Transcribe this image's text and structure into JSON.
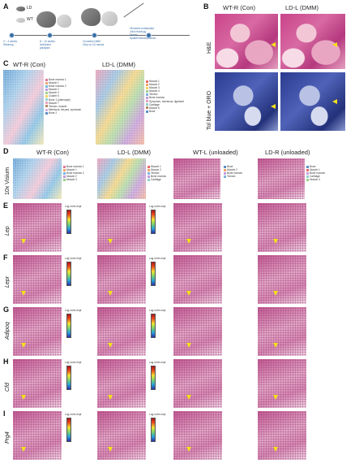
{
  "panels": {
    "A": {
      "letter": "A",
      "legend_ld": "LD",
      "legend_wt": "WT",
      "step1": "0 ~ 4 weeks\nWeaning",
      "step2": "8 ~ 10 weeks\nIsoflurane\nparalysis",
      "step3": "16 weeks DMM\nOnly on LD mouse",
      "step4": "28 weeks euthanasia\nJoint histology\nSerum\nSpatial transcriptomics"
    },
    "B": {
      "letter": "B",
      "col1": "WT-R (Con)",
      "col2": "LD-L (DMM)",
      "row1": "H&E",
      "row2": "Tol blue + ORO"
    },
    "C": {
      "letter": "C",
      "col1": "WT-R (Con)",
      "col2": "LD-L (DMM)",
      "legend1": [
        "Bone marrow 1",
        "Muscle 1",
        "Bone marrow 2",
        "Muscle 2",
        "Muscle 3",
        "Cluster 6",
        "Bone 1 (osteocyte)",
        "Muscle 7",
        "Tendon, muscle",
        "Meniscus, fat pad, synovium",
        "Bone 2"
      ],
      "legend1_colors": [
        "#e07a9a",
        "#f2a36b",
        "#7bb3de",
        "#c49ae0",
        "#9dd08a",
        "#f4d35e",
        "#8fd1d1",
        "#e6a0c4",
        "#b58a66",
        "#d3b4e8",
        "#5b8fc7"
      ],
      "legend2": [
        "Muscle 1",
        "Muscle 2",
        "Muscle 3",
        "Muscle 4",
        "Tendon",
        "Bone marrow",
        "Synovium, meniscus, ligament",
        "Cartilage",
        "Muscle 5",
        "Bone"
      ],
      "legend2_colors": [
        "#e86b6b",
        "#f2a36b",
        "#f4d35e",
        "#9dd08a",
        "#7bb3de",
        "#c49ae0",
        "#e6a0c4",
        "#8fd1d1",
        "#b58a66",
        "#5b8fc7"
      ]
    },
    "D": {
      "letter": "D",
      "row": "10x Visium",
      "cols": [
        "WT-R (Con)",
        "LD-L (DMM)",
        "WT-L (unloaded)",
        "LD-R (unloaded)"
      ]
    },
    "genes": [
      {
        "letter": "E",
        "gene": "Lep"
      },
      {
        "letter": "F",
        "gene": "Lepr"
      },
      {
        "letter": "G",
        "gene": "Adipoq"
      },
      {
        "letter": "H",
        "gene": "Cfd"
      },
      {
        "letter": "I",
        "gene": "Prg4"
      }
    ],
    "colorbar_title": "Log norm expr"
  }
}
